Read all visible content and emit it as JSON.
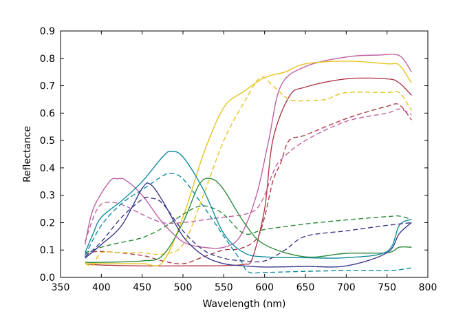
{
  "chart_data": {
    "type": "line",
    "title": "",
    "xlabel": "Wavelength (nm)",
    "ylabel": "Reflectance",
    "xlim": [
      350,
      800
    ],
    "ylim": [
      0,
      0.9
    ],
    "xticks": [
      350,
      400,
      450,
      500,
      550,
      600,
      650,
      700,
      750,
      800
    ],
    "yticks": [
      0.0,
      0.1,
      0.2,
      0.3,
      0.4,
      0.5,
      0.6,
      0.7,
      0.8,
      0.9
    ],
    "grid": false,
    "legend": "none",
    "series": [
      {
        "color": "#b03a48",
        "dash": "solid",
        "x": [
          380,
          400,
          450,
          500,
          550,
          575,
          585,
          600,
          610,
          630,
          650,
          700,
          750,
          765,
          780
        ],
        "y": [
          0.05,
          0.045,
          0.042,
          0.042,
          0.043,
          0.048,
          0.07,
          0.25,
          0.5,
          0.66,
          0.695,
          0.725,
          0.725,
          0.71,
          0.665
        ]
      },
      {
        "color": "#b03a48",
        "dash": "dashed",
        "x": [
          380,
          400,
          450,
          475,
          500,
          525,
          550,
          570,
          590,
          600,
          610,
          620,
          630,
          650,
          700,
          750,
          765,
          780
        ],
        "y": [
          0.085,
          0.095,
          0.08,
          0.06,
          0.05,
          0.075,
          0.1,
          0.105,
          0.14,
          0.22,
          0.35,
          0.42,
          0.5,
          0.52,
          0.58,
          0.625,
          0.63,
          0.575
        ]
      },
      {
        "color": "#c060a0",
        "dash": "solid",
        "x": [
          380,
          390,
          410,
          420,
          430,
          450,
          475,
          500,
          525,
          550,
          570,
          590,
          605,
          620,
          650,
          700,
          740,
          765,
          780
        ],
        "y": [
          0.12,
          0.25,
          0.35,
          0.36,
          0.355,
          0.3,
          0.2,
          0.13,
          0.11,
          0.11,
          0.15,
          0.3,
          0.5,
          0.7,
          0.77,
          0.805,
          0.812,
          0.81,
          0.75
        ]
      },
      {
        "color": "#c060a0",
        "dash": "dashed",
        "x": [
          380,
          395,
          410,
          430,
          450,
          475,
          500,
          525,
          550,
          575,
          590,
          600,
          610,
          620,
          650,
          700,
          750,
          765,
          780
        ],
        "y": [
          0.13,
          0.25,
          0.275,
          0.26,
          0.23,
          0.2,
          0.2,
          0.21,
          0.22,
          0.23,
          0.25,
          0.3,
          0.38,
          0.43,
          0.5,
          0.57,
          0.6,
          0.615,
          0.595
        ]
      },
      {
        "color": "#e8c21c",
        "dash": "solid",
        "x": [
          380,
          400,
          450,
          475,
          500,
          525,
          550,
          575,
          600,
          625,
          650,
          700,
          750,
          765,
          780
        ],
        "y": [
          0.05,
          0.05,
          0.05,
          0.055,
          0.22,
          0.45,
          0.62,
          0.68,
          0.73,
          0.75,
          0.78,
          0.79,
          0.78,
          0.775,
          0.71
        ]
      },
      {
        "color": "#e8c21c",
        "dash": "dashed",
        "x": [
          380,
          390,
          400,
          425,
          450,
          475,
          500,
          525,
          550,
          575,
          595,
          610,
          630,
          650,
          675,
          700,
          750,
          765,
          780
        ],
        "y": [
          0.05,
          0.045,
          0.09,
          0.09,
          0.09,
          0.085,
          0.12,
          0.3,
          0.5,
          0.64,
          0.73,
          0.7,
          0.65,
          0.645,
          0.65,
          0.675,
          0.675,
          0.675,
          0.61
        ]
      },
      {
        "color": "#2e8b3a",
        "dash": "solid",
        "x": [
          380,
          400,
          450,
          475,
          500,
          520,
          535,
          550,
          575,
          600,
          650,
          700,
          750,
          765,
          780
        ],
        "y": [
          0.055,
          0.055,
          0.06,
          0.08,
          0.2,
          0.34,
          0.36,
          0.32,
          0.2,
          0.12,
          0.075,
          0.088,
          0.09,
          0.11,
          0.11
        ]
      },
      {
        "color": "#2e8b3a",
        "dash": "dashed",
        "x": [
          380,
          400,
          420,
          450,
          475,
          500,
          520,
          535,
          550,
          575,
          600,
          650,
          700,
          750,
          765,
          780
        ],
        "y": [
          0.09,
          0.11,
          0.125,
          0.145,
          0.18,
          0.23,
          0.26,
          0.255,
          0.23,
          0.16,
          0.175,
          0.195,
          0.21,
          0.222,
          0.224,
          0.212
        ]
      },
      {
        "color": "#0e8c9e",
        "dash": "solid",
        "x": [
          380,
          390,
          400,
          425,
          450,
          475,
          485,
          500,
          525,
          550,
          575,
          600,
          650,
          700,
          750,
          765,
          780
        ],
        "y": [
          0.09,
          0.16,
          0.22,
          0.28,
          0.35,
          0.44,
          0.46,
          0.44,
          0.32,
          0.16,
          0.09,
          0.075,
          0.072,
          0.072,
          0.095,
          0.19,
          0.212
        ]
      },
      {
        "color": "#0e8c9e",
        "dash": "dashed",
        "x": [
          380,
          400,
          425,
          450,
          475,
          485,
          500,
          525,
          550,
          570,
          580,
          600,
          650,
          700,
          750,
          765,
          780
        ],
        "y": [
          0.08,
          0.19,
          0.27,
          0.32,
          0.37,
          0.38,
          0.36,
          0.26,
          0.15,
          0.065,
          0.02,
          0.018,
          0.022,
          0.025,
          0.025,
          0.028,
          0.035
        ]
      },
      {
        "color": "#3a3a8c",
        "dash": "solid",
        "x": [
          380,
          400,
          425,
          450,
          460,
          475,
          500,
          525,
          550,
          575,
          600,
          650,
          700,
          750,
          765,
          780
        ],
        "y": [
          0.07,
          0.12,
          0.19,
          0.325,
          0.34,
          0.28,
          0.15,
          0.08,
          0.05,
          0.042,
          0.038,
          0.04,
          0.042,
          0.09,
          0.16,
          0.2
        ]
      },
      {
        "color": "#3a3a8c",
        "dash": "dashed",
        "x": [
          380,
          400,
          425,
          450,
          460,
          475,
          500,
          525,
          550,
          575,
          600,
          625,
          650,
          700,
          750,
          765,
          780
        ],
        "y": [
          0.075,
          0.13,
          0.22,
          0.285,
          0.29,
          0.27,
          0.17,
          0.1,
          0.07,
          0.06,
          0.06,
          0.1,
          0.15,
          0.17,
          0.19,
          0.195,
          0.2
        ]
      }
    ]
  }
}
